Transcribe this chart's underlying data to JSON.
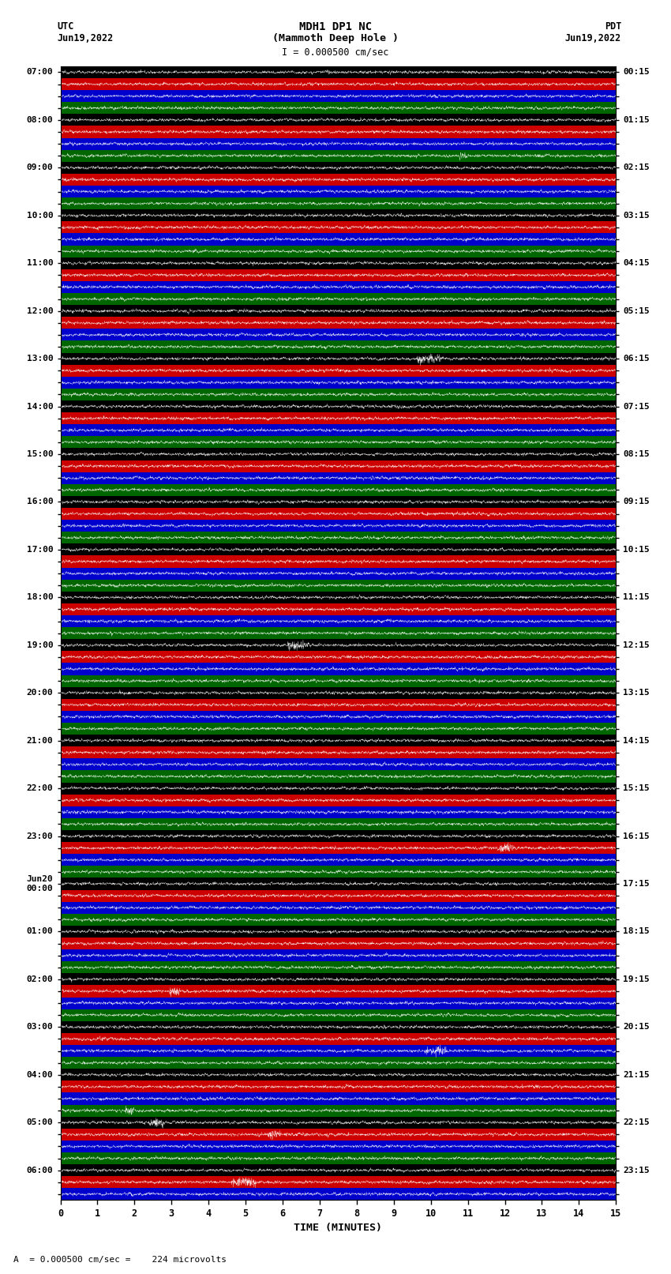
{
  "title_line1": "MDH1 DP1 NC",
  "title_line2": "(Mammoth Deep Hole )",
  "scale_text": "I = 0.000500 cm/sec",
  "bottom_scale_text": "A  = 0.000500 cm/sec =    224 microvolts",
  "utc_label": "UTC",
  "utc_date": "Jun19,2022",
  "pdt_label": "PDT",
  "pdt_date": "Jun19,2022",
  "xlabel": "TIME (MINUTES)",
  "xmin": 0,
  "xmax": 15,
  "background_color": "#ffffff",
  "band_colors": [
    "#000000",
    "#cc0000",
    "#0000cc",
    "#006600"
  ],
  "utc_times_left": [
    "07:00",
    "",
    "",
    "",
    "08:00",
    "",
    "",
    "",
    "09:00",
    "",
    "",
    "",
    "10:00",
    "",
    "",
    "",
    "11:00",
    "",
    "",
    "",
    "12:00",
    "",
    "",
    "",
    "13:00",
    "",
    "",
    "",
    "14:00",
    "",
    "",
    "",
    "15:00",
    "",
    "",
    "",
    "16:00",
    "",
    "",
    "",
    "17:00",
    "",
    "",
    "",
    "18:00",
    "",
    "",
    "",
    "19:00",
    "",
    "",
    "",
    "20:00",
    "",
    "",
    "",
    "21:00",
    "",
    "",
    "",
    "22:00",
    "",
    "",
    "",
    "23:00",
    "",
    "",
    "",
    "Jun20\n00:00",
    "",
    "",
    "",
    "01:00",
    "",
    "",
    "",
    "02:00",
    "",
    "",
    "",
    "03:00",
    "",
    "",
    "",
    "04:00",
    "",
    "",
    "",
    "05:00",
    "",
    "",
    "",
    "06:00",
    "",
    ""
  ],
  "pdt_times_right": [
    "00:15",
    "",
    "",
    "",
    "01:15",
    "",
    "",
    "",
    "02:15",
    "",
    "",
    "",
    "03:15",
    "",
    "",
    "",
    "04:15",
    "",
    "",
    "",
    "05:15",
    "",
    "",
    "",
    "06:15",
    "",
    "",
    "",
    "07:15",
    "",
    "",
    "",
    "08:15",
    "",
    "",
    "",
    "09:15",
    "",
    "",
    "",
    "10:15",
    "",
    "",
    "",
    "11:15",
    "",
    "",
    "",
    "12:15",
    "",
    "",
    "",
    "13:15",
    "",
    "",
    "",
    "14:15",
    "",
    "",
    "",
    "15:15",
    "",
    "",
    "",
    "16:15",
    "",
    "",
    "",
    "17:15",
    "",
    "",
    "",
    "18:15",
    "",
    "",
    "",
    "19:15",
    "",
    "",
    "",
    "20:15",
    "",
    "",
    "",
    "21:15",
    "",
    "",
    "",
    "22:15",
    "",
    "",
    "",
    "23:15",
    "",
    ""
  ],
  "n_traces": 95,
  "noise_amplitude": 0.28,
  "figwidth": 8.5,
  "figheight": 16.13,
  "dpi": 100
}
